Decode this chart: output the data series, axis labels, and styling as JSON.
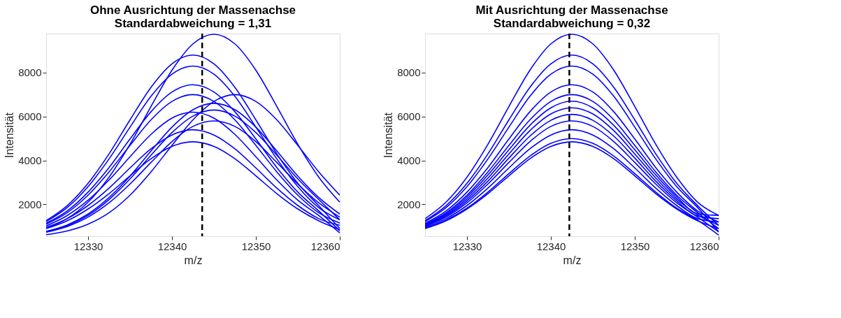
{
  "chart_data": [
    {
      "type": "line",
      "title": [
        "Ohne Ausrichtung der Massenachse",
        "Standardabweichung = 1,31"
      ],
      "xlabel": "m/z",
      "ylabel": "Intensität",
      "x": [
        12325,
        12327.5,
        12330,
        12332.5,
        12335,
        12337.5,
        12340,
        12342.5,
        12345,
        12347.5,
        12350,
        12352.5,
        12355,
        12357.5,
        12360
      ],
      "xlim": [
        12325,
        12360
      ],
      "xticks": [
        12330,
        12340,
        12350,
        12360
      ],
      "ylim": [
        550,
        9780
      ],
      "yticks": [
        2000,
        4000,
        6000,
        8000
      ],
      "grid": false,
      "legend": false,
      "marker": "none",
      "line_style": "solid",
      "series": [
        {
          "color": "#0000ff",
          "values": [
            910,
            1350,
            2100,
            3240,
            4740,
            6460,
            8110,
            9310,
            9750,
            9310,
            8110,
            6460,
            4740,
            3240,
            2100
          ]
        },
        {
          "color": "#0000ff",
          "values": [
            1260,
            1940,
            2960,
            4300,
            5850,
            7330,
            8400,
            8800,
            8400,
            7330,
            5850,
            4300,
            2960,
            1940,
            900
          ]
        },
        {
          "color": "#0000ff",
          "values": [
            1220,
            1850,
            2810,
            4070,
            5520,
            6920,
            7930,
            8300,
            7930,
            6920,
            5520,
            4070,
            2810,
            1850,
            1300
          ]
        },
        {
          "color": "#0000ff",
          "values": [
            1140,
            1700,
            2560,
            3680,
            4980,
            6220,
            7120,
            7450,
            7120,
            6220,
            4980,
            3680,
            2560,
            1700,
            800
          ]
        },
        {
          "color": "#0000ff",
          "values": [
            1100,
            1620,
            2420,
            3480,
            4690,
            5850,
            6690,
            7000,
            6690,
            5850,
            4690,
            3480,
            2420,
            1620,
            1150
          ]
        },
        {
          "color": "#0000ff",
          "values": [
            620,
            790,
            1100,
            1620,
            2420,
            3480,
            4690,
            5850,
            6690,
            7000,
            6690,
            5850,
            4690,
            3480,
            2420
          ]
        },
        {
          "color": "#0000ff",
          "values": [
            770,
            1060,
            1560,
            2310,
            3290,
            4430,
            5520,
            6310,
            6600,
            6310,
            5520,
            4430,
            3290,
            2310,
            1560
          ]
        },
        {
          "color": "#0000ff",
          "values": [
            760,
            1030,
            1500,
            2220,
            3160,
            4240,
            5270,
            6020,
            6300,
            6020,
            5270,
            4240,
            3160,
            2220,
            1300
          ]
        },
        {
          "color": "#0000ff",
          "values": [
            1020,
            1490,
            2190,
            3110,
            4170,
            5190,
            5930,
            6200,
            5930,
            5190,
            4170,
            3110,
            2190,
            1490,
            700
          ]
        },
        {
          "color": "#0000ff",
          "values": [
            730,
            990,
            1420,
            2070,
            2930,
            3910,
            4860,
            5550,
            5800,
            5550,
            4860,
            3910,
            2930,
            2070,
            1420
          ]
        },
        {
          "color": "#0000ff",
          "values": [
            950,
            1350,
            1950,
            2740,
            3660,
            4530,
            5160,
            5400,
            5160,
            4530,
            3660,
            2740,
            1950,
            1350,
            1050
          ]
        },
        {
          "color": "#0000ff",
          "values": [
            900,
            1250,
            1790,
            2490,
            3300,
            4080,
            4640,
            4850,
            4640,
            4080,
            3300,
            2490,
            1790,
            1250,
            850
          ]
        }
      ],
      "ref_lines": [
        {
          "axis": "x",
          "value": 12343.6,
          "color": "#000000",
          "line_style": "dashed"
        }
      ]
    },
    {
      "type": "line",
      "title": [
        "Mit Ausrichtung der Massenachse",
        "Standardabweichung = 0,32"
      ],
      "xlabel": "m/z",
      "ylabel": "Intensität",
      "x": [
        12325,
        12327.5,
        12330,
        12332.5,
        12335,
        12337.5,
        12340,
        12342.5,
        12345,
        12347.5,
        12350,
        12352.5,
        12355,
        12357.5,
        12360
      ],
      "xlim": [
        12325,
        12360
      ],
      "xticks": [
        12330,
        12340,
        12350,
        12360
      ],
      "ylim": [
        550,
        9780
      ],
      "yticks": [
        2000,
        4000,
        6000,
        8000
      ],
      "grid": false,
      "legend": false,
      "marker": "none",
      "line_style": "solid",
      "series": [
        {
          "color": "#0000ff",
          "values": [
            1350,
            2100,
            3240,
            4740,
            6460,
            8110,
            9310,
            9750,
            9310,
            8110,
            6460,
            4740,
            3240,
            2100,
            1500
          ]
        },
        {
          "color": "#0000ff",
          "values": [
            1260,
            1940,
            2960,
            4300,
            5850,
            7330,
            8400,
            8800,
            8400,
            7330,
            5850,
            4300,
            2960,
            1940,
            1050
          ]
        },
        {
          "color": "#0000ff",
          "values": [
            1220,
            1850,
            2810,
            4070,
            5520,
            6920,
            7930,
            8300,
            7930,
            6920,
            5520,
            4070,
            2810,
            1850,
            750
          ]
        },
        {
          "color": "#0000ff",
          "values": [
            1140,
            1700,
            2560,
            3680,
            4980,
            6220,
            7120,
            7450,
            7120,
            6220,
            4980,
            3680,
            2560,
            1700,
            1200
          ]
        },
        {
          "color": "#0000ff",
          "values": [
            1100,
            1620,
            2420,
            3480,
            4690,
            5850,
            6690,
            7000,
            6690,
            5850,
            4690,
            3480,
            2420,
            1620,
            900
          ]
        },
        {
          "color": "#0000ff",
          "values": [
            1070,
            1570,
            2340,
            3340,
            4490,
            5600,
            6400,
            6700,
            6400,
            5600,
            4490,
            3340,
            2340,
            1570,
            1500
          ]
        },
        {
          "color": "#0000ff",
          "values": [
            1040,
            1520,
            2250,
            3200,
            4300,
            5360,
            6120,
            6400,
            6120,
            5360,
            4300,
            3200,
            2250,
            1520,
            1050
          ]
        },
        {
          "color": "#0000ff",
          "values": [
            1020,
            1470,
            2160,
            3060,
            4110,
            5110,
            5830,
            6100,
            5830,
            5110,
            4110,
            3060,
            2160,
            1470,
            1350
          ]
        },
        {
          "color": "#0000ff",
          "values": [
            990,
            1420,
            2070,
            2930,
            3910,
            4860,
            5550,
            5800,
            5550,
            4860,
            3910,
            2930,
            2070,
            1420,
            750
          ]
        },
        {
          "color": "#0000ff",
          "values": [
            950,
            1350,
            1950,
            2740,
            3660,
            4530,
            5160,
            5400,
            5160,
            4530,
            3660,
            2740,
            1950,
            1350,
            1200
          ]
        },
        {
          "color": "#0000ff",
          "values": [
            910,
            1280,
            1830,
            2560,
            3400,
            4200,
            4780,
            5000,
            4780,
            4200,
            3400,
            2560,
            1830,
            1280,
            600
          ]
        },
        {
          "color": "#0000ff",
          "values": [
            900,
            1250,
            1790,
            2490,
            3300,
            4080,
            4640,
            4850,
            4640,
            4080,
            3300,
            2490,
            1790,
            1250,
            900
          ]
        }
      ],
      "ref_lines": [
        {
          "axis": "x",
          "value": 12342.2,
          "color": "#000000",
          "line_style": "dashed"
        }
      ]
    }
  ]
}
